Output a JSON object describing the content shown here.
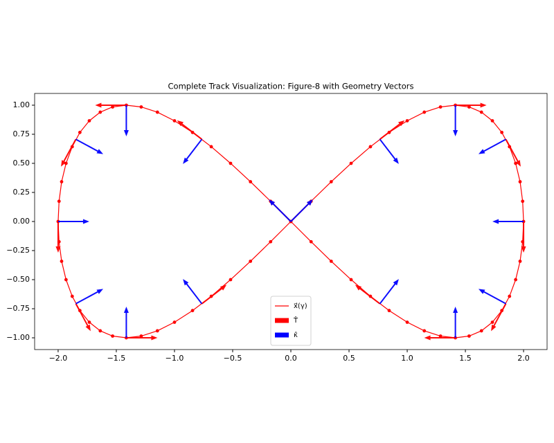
{
  "chart_data": {
    "type": "line",
    "title": "Complete Track Visualization: Figure-8 with Geometry Vectors",
    "series": [
      {
        "name": "x⃗(γ)",
        "color": "#ff0000",
        "x": [
          0,
          0.174,
          0.347,
          0.518,
          0.684,
          0.845,
          1,
          1.147,
          1.286,
          1.414,
          1.532,
          1.638,
          1.732,
          1.813,
          1.879,
          1.932,
          1.97,
          1.992,
          2,
          1.992,
          1.97,
          1.932,
          1.879,
          1.813,
          1.732,
          1.638,
          1.532,
          1.414,
          1.286,
          1.147,
          1,
          0.845,
          0.684,
          0.518,
          0.347,
          0.174,
          0,
          -0.174,
          -0.347,
          -0.518,
          -0.684,
          -0.845,
          -1,
          -1.147,
          -1.286,
          -1.414,
          -1.532,
          -1.638,
          -1.732,
          -1.813,
          -1.879,
          -1.932,
          -1.97,
          -1.992,
          -2,
          -1.992,
          -1.97,
          -1.932,
          -1.879,
          -1.813,
          -1.732,
          -1.638,
          -1.532,
          -1.414,
          -1.286,
          -1.147,
          -1,
          -0.845,
          -0.684,
          -0.518,
          -0.347,
          -0.174
        ],
        "values": [
          0,
          0.174,
          0.342,
          0.5,
          0.643,
          0.766,
          0.866,
          0.94,
          0.985,
          1,
          0.985,
          0.94,
          0.866,
          0.766,
          0.643,
          0.5,
          0.342,
          0.174,
          0,
          -0.174,
          -0.342,
          -0.5,
          -0.643,
          -0.766,
          -0.866,
          -0.94,
          -0.985,
          -1,
          -0.985,
          -0.94,
          -0.866,
          -0.766,
          -0.643,
          -0.5,
          -0.342,
          -0.174,
          0,
          0.174,
          0.342,
          0.5,
          0.643,
          0.766,
          0.866,
          0.94,
          0.985,
          1,
          0.985,
          0.94,
          0.866,
          0.766,
          0.643,
          0.5,
          0.342,
          0.174,
          0,
          -0.174,
          -0.342,
          -0.5,
          -0.643,
          -0.766,
          -0.866,
          -0.94,
          -0.985,
          -1,
          -0.985,
          -0.94,
          -0.866,
          -0.766,
          -0.643,
          -0.5,
          -0.342,
          -0.174
        ]
      }
    ],
    "vector_points": {
      "x": [
        0,
        0.765,
        1.414,
        1.848,
        2,
        1.848,
        1.414,
        0.765,
        0,
        -0.765,
        -1.414,
        -1.848,
        -2,
        -1.848,
        -1.414,
        -0.765
      ],
      "y": [
        0,
        0.707,
        1,
        0.707,
        0,
        -0.707,
        -1,
        -0.707,
        0,
        0.707,
        1,
        0.707,
        0,
        -0.707,
        -1,
        -0.707
      ]
    },
    "vectors": [
      {
        "name": "T̂",
        "color": "#ff0000",
        "u": [
          0.707,
          0.794,
          1,
          0.476,
          0,
          -0.476,
          -1,
          -0.794,
          -0.707,
          -0.794,
          -1,
          -0.476,
          0,
          0.476,
          1,
          0.794
        ],
        "v": [
          0.707,
          0.608,
          0,
          -0.879,
          -1,
          -0.879,
          0,
          0.608,
          0.707,
          0.608,
          0,
          -0.879,
          -1,
          -0.879,
          0,
          0.608
        ]
      },
      {
        "name": "κ̂",
        "color": "#0000ff",
        "u": [
          -0.707,
          0.608,
          0,
          -0.879,
          -1,
          -0.879,
          0,
          0.608,
          0.707,
          -0.608,
          0,
          0.879,
          1,
          0.879,
          0,
          -0.608
        ],
        "v": [
          0.707,
          -0.794,
          -1,
          -0.476,
          0,
          0.476,
          1,
          0.794,
          0.707,
          -0.794,
          -1,
          -0.476,
          0,
          0.476,
          1,
          0.794
        ]
      }
    ],
    "xlim": [
      -2.202,
      2.202
    ],
    "ylim": [
      -1.101,
      1.101
    ],
    "xticks": [
      {
        "value": -2,
        "label": "−2.0"
      },
      {
        "value": -1.5,
        "label": "−1.5"
      },
      {
        "value": -1,
        "label": "−1.0"
      },
      {
        "value": -0.5,
        "label": "−0.5"
      },
      {
        "value": 0,
        "label": "0.0"
      },
      0.5,
      {
        "value": 1,
        "label": "1.0"
      },
      1.5,
      {
        "value": 2,
        "label": "2.0"
      }
    ],
    "yticks": [
      {
        "value": -1,
        "label": "−1.00"
      },
      {
        "value": -0.75,
        "label": "−0.75"
      },
      {
        "value": -0.5,
        "label": "−0.50"
      },
      {
        "value": -0.25,
        "label": "−0.25"
      },
      {
        "value": 0,
        "label": "0.00"
      },
      {
        "value": 0.25,
        "label": "0.25"
      },
      {
        "value": 0.5,
        "label": "0.50"
      },
      {
        "value": 0.75,
        "label": "0.75"
      },
      {
        "value": 1,
        "label": "1.00"
      }
    ],
    "legend": "lower center"
  }
}
